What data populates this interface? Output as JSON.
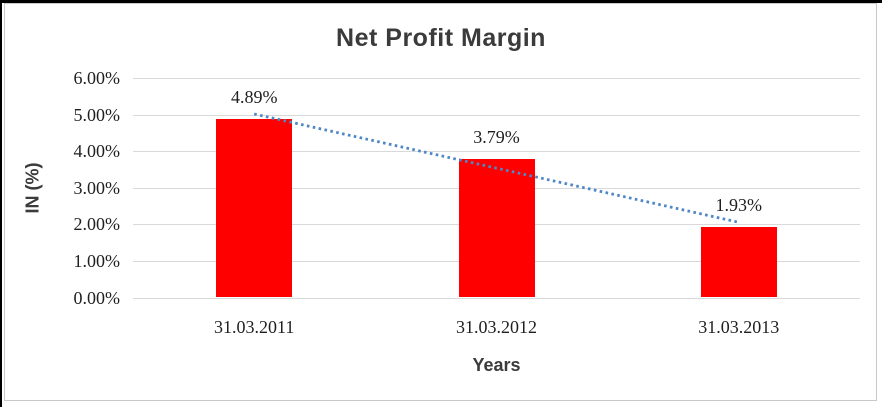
{
  "chart_data": {
    "type": "bar",
    "title": "Net Profit Margin",
    "xlabel": "Years",
    "ylabel": "IN (%)",
    "categories": [
      "31.03.2011",
      "31.03.2012",
      "31.03.2013"
    ],
    "values": [
      4.89,
      3.79,
      1.93
    ],
    "data_labels": [
      "4.89%",
      "3.79%",
      "1.93%"
    ],
    "yticks": [
      {
        "value": 0,
        "label": "0.00%"
      },
      {
        "value": 1,
        "label": "1.00%"
      },
      {
        "value": 2,
        "label": "2.00%"
      },
      {
        "value": 3,
        "label": "3.00%"
      },
      {
        "value": 4,
        "label": "4.00%"
      },
      {
        "value": 5,
        "label": "5.00%"
      },
      {
        "value": 6,
        "label": "6.00%"
      }
    ],
    "ylim": [
      0,
      6
    ],
    "grid": true,
    "legend_position": "none",
    "trendline": {
      "type": "linear",
      "style": "dotted"
    },
    "colors": {
      "bar": "#FF0000",
      "trendline": "#4E86C6",
      "gridline": "#D9D9D9",
      "title_text": "#3B3B3B",
      "tick_text": "#1F1F1F",
      "chart_border": "#C9C9C9"
    }
  }
}
